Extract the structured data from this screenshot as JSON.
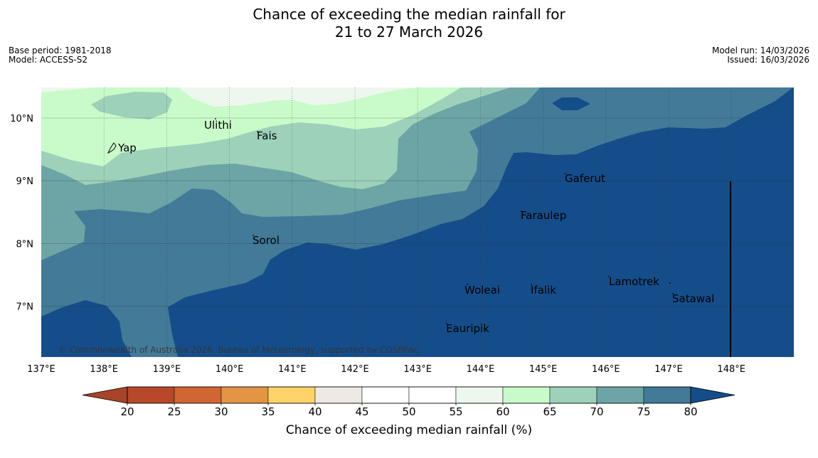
{
  "title": {
    "line1": "Chance of exceeding the median rainfall for",
    "line2": "21 to 27 March 2026"
  },
  "meta": {
    "base_period": "Base period: 1981-2018",
    "model": "Model: ACCESS-S2",
    "model_run": "Model run: 14/03/2026",
    "issued": "Issued: 16/03/2026"
  },
  "map": {
    "lon_labels": [
      "137°E",
      "138°E",
      "139°E",
      "140°E",
      "141°E",
      "142°E",
      "143°E",
      "144°E",
      "145°E",
      "146°E",
      "147°E",
      "148°E"
    ],
    "lat_labels": [
      "10°N",
      "9°N",
      "8°N",
      "7°N"
    ],
    "places": [
      "Yap",
      "Ulithi",
      "Fais",
      "Gaferut",
      "Faraulep",
      "Sorol",
      "Woleai",
      "Ifalik",
      "Lamotrek",
      "Satawal",
      "Eauripik"
    ],
    "copyright": "© Commonwealth of Australia 2026, Bureau of Meteorology, supported by COSPPac"
  },
  "colorbar": {
    "ticks": [
      "20",
      "25",
      "30",
      "35",
      "40",
      "45",
      "50",
      "55",
      "60",
      "65",
      "70",
      "75",
      "80"
    ],
    "title": "Chance of exceeding median rainfall (%)",
    "colors": [
      "#a8442a",
      "#b8482a",
      "#d06632",
      "#e39445",
      "#ffd36a",
      "#ede9e4",
      "#ffffff",
      "#ffffff",
      "#edf7ee",
      "#c9fbca",
      "#9dd1ba",
      "#6da5a6",
      "#427a98",
      "#154d8a"
    ]
  },
  "palette": {
    "c_60_65": "#edf7ee",
    "c_65_70": "#c9fbca",
    "c_70_75": "#9dd1ba",
    "c_75_80": "#6da5a6",
    "c_80_85": "#427a98",
    "c_85plus": "#154d8a"
  }
}
